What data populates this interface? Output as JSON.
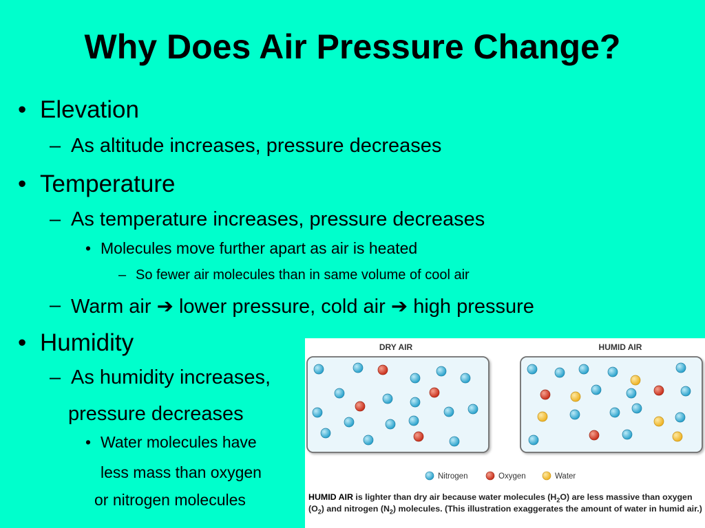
{
  "slide": {
    "title": "Why Does Air Pressure Change?",
    "bullet_char": "•",
    "dash_char": "–",
    "items": {
      "elevation": "Elevation",
      "elevation_sub": "As altitude increases, pressure decreases",
      "temperature": "Temperature",
      "temp_sub": "As temperature increases, pressure decreases",
      "temp_sub_detail": "Molecules move further apart as air is heated",
      "temp_sub_detail2": "So fewer air molecules than in same volume of cool air",
      "warm_a": "Warm air",
      "warm_b": "lower pressure, cold air",
      "warm_c": "high pressure",
      "arrow_char": "➔",
      "humidity": "Humidity",
      "humidity_sub_1": "As humidity increases,",
      "humidity_sub_2": "pressure decreases",
      "water_1": "Water molecules have",
      "water_2": "less mass than oxygen",
      "water_3": "or nitrogen molecules"
    }
  },
  "figure": {
    "dry_label": "DRY AIR",
    "humid_label": "HUMID AIR",
    "legend": {
      "nitrogen": "Nitrogen",
      "oxygen": "Oxygen",
      "water": "Water"
    },
    "colors": {
      "nitrogen": "#3fb4d8",
      "oxygen": "#d9442e",
      "water": "#f3c23a",
      "box_fill": "#eaf6fb",
      "box_stroke": "#6e6e6e",
      "slide_bg": "#00ffcc"
    },
    "caption": {
      "strong": "HUMID AIR",
      "t1": " is lighter than dry air because water molecules (H",
      "sub_h2o": "2",
      "t2": "O) are less massive than oxygen (O",
      "sub_o2": "2",
      "t3": ") and nitrogen (N",
      "sub_n2": "2",
      "t4": ") molecules. (This illustration exaggerates the amount of water in humid air.)"
    },
    "dry_molecules": {
      "nitrogen": 19,
      "oxygen": 3,
      "water": 0
    },
    "humid_molecules": {
      "nitrogen": 15,
      "oxygen": 4,
      "water": 5
    }
  }
}
